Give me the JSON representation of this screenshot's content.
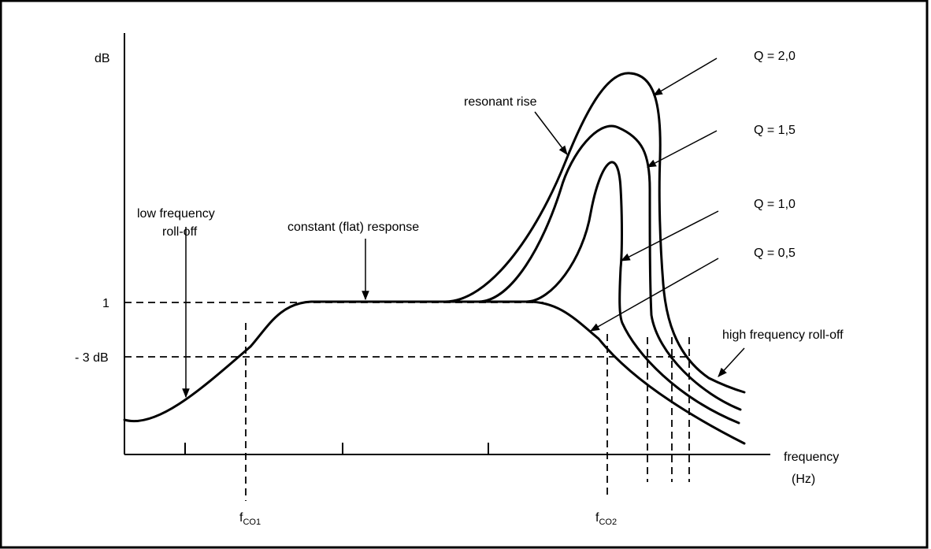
{
  "axes": {
    "y_label": "dB",
    "x_label_line1": "frequency",
    "x_label_line2": "(Hz)",
    "y_tick_top": "1",
    "y_tick_3db": "- 3 dB"
  },
  "cutoffs": {
    "fco1_main": "f",
    "fco1_sub": "CO1",
    "fco2_main": "f",
    "fco2_sub": "CO2"
  },
  "annotations": {
    "low_rolloff_line1": "low frequency",
    "low_rolloff_line2": "roll-off",
    "flat_response": "constant (flat) response",
    "resonant_rise": "resonant rise",
    "high_rolloff": "high frequency roll-off"
  },
  "curves": [
    {
      "label": "Q = 2,0"
    },
    {
      "label": "Q = 1,5"
    },
    {
      "label": "Q = 1,0"
    },
    {
      "label": "Q = 0,5"
    }
  ],
  "colors": {
    "line": "#000000",
    "background": "#ffffff"
  }
}
